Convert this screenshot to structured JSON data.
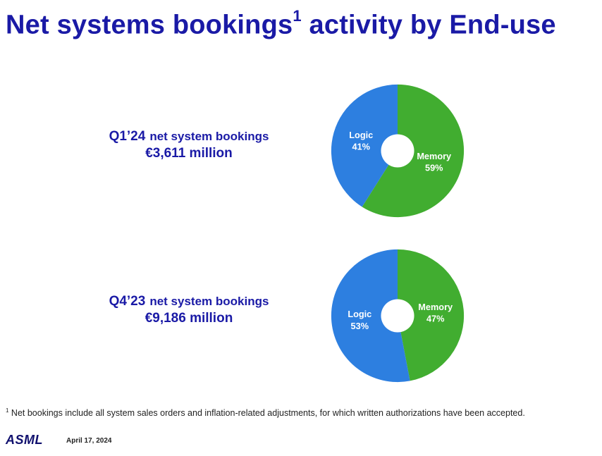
{
  "page": {
    "title": "Net systems bookings",
    "title_sup": "1",
    "title_suffix": " activity by End-use",
    "footnote_mark": "1",
    "footnote": " Net bookings include all system sales orders and inflation-related adjustments, for which written authorizations have been accepted.",
    "logo": "ASML",
    "date": "April 17, 2024"
  },
  "blocks": [
    {
      "quarter": "Q1’24",
      "label": "net system bookings",
      "amount": "€3,611 million"
    },
    {
      "quarter": "Q4’23",
      "label": "net system bookings",
      "amount": "€9,186 million"
    }
  ],
  "colors": {
    "title": "#1a1aa6",
    "memory": "#41ad30",
    "logic": "#2d7fe0"
  },
  "chart_data": [
    {
      "type": "pie",
      "slices": [
        {
          "name": "Memory",
          "value": 59,
          "label": "59%",
          "color": "#41ad30"
        },
        {
          "name": "Logic",
          "value": 41,
          "label": "41%",
          "color": "#2d7fe0"
        }
      ]
    },
    {
      "type": "pie",
      "slices": [
        {
          "name": "Memory",
          "value": 47,
          "label": "47%",
          "color": "#41ad30"
        },
        {
          "name": "Logic",
          "value": 53,
          "label": "53%",
          "color": "#2d7fe0"
        }
      ]
    }
  ]
}
